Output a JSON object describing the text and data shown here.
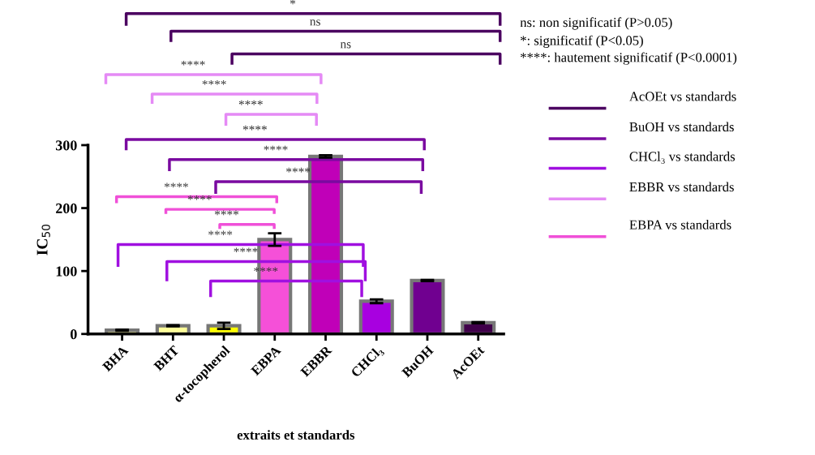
{
  "chart_data": {
    "type": "bar",
    "ylabel": "IC$_{50}$",
    "xlabel": "extraits et standards",
    "categories": [
      "BHA",
      "BHT",
      "α-tocopherol",
      "EBPA",
      "EBBR",
      "CHCl₃",
      "BuOH",
      "AcOEt"
    ],
    "values": [
      6,
      13,
      13,
      150,
      282,
      52,
      85,
      18
    ],
    "errors": [
      1,
      1,
      5,
      10,
      2,
      3,
      1,
      1
    ],
    "colors": [
      "#f5f08a",
      "#ffff99",
      "#ffff00",
      "#f550d8",
      "#c000b8",
      "#a800e0",
      "#700090",
      "#40004a"
    ],
    "ylim": [
      0,
      300
    ],
    "yticks": [
      0,
      100,
      200,
      300
    ],
    "grid": false,
    "legend": false,
    "annotations": [
      "ns: non significatif (P>0.05)",
      "*: significatif (P<0.05)",
      "****: hautement significatif (P<0.0001)",
      "AcOEt vs standards",
      "BuOH vs standards",
      "CHCl₃ vs standards",
      "EBBR vs standards",
      "EBPA vs standards",
      "*",
      "ns",
      "ns",
      "****",
      "****",
      "****",
      "****",
      "****",
      "****",
      "****",
      "****",
      "****",
      "****",
      "****",
      "****"
    ]
  }
}
